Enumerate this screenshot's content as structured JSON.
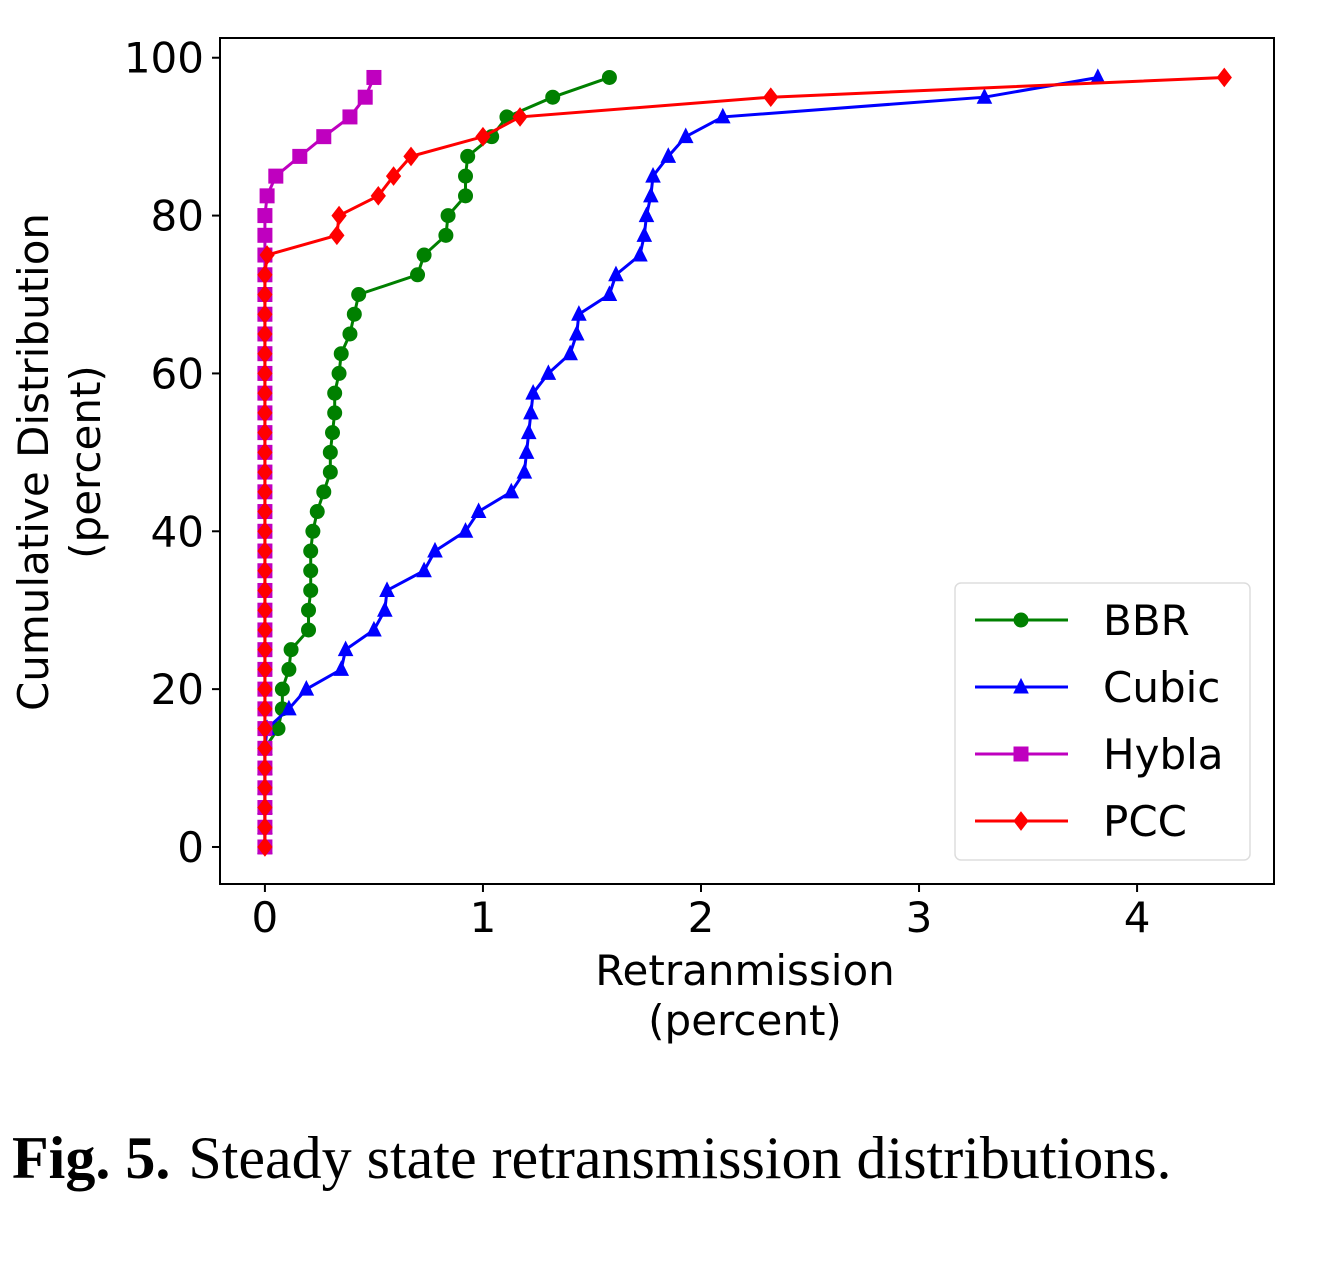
{
  "chart_data": {
    "type": "line",
    "xlabel": [
      "Retranmission",
      "(percent)"
    ],
    "ylabel": [
      "Cumulative Distribution",
      "(percent)"
    ],
    "xlim": [
      -0.206,
      4.628
    ],
    "ylim": [
      -4.69,
      102.5
    ],
    "xticks": [
      0,
      1,
      2,
      3,
      4
    ],
    "yticks": [
      0,
      20,
      40,
      60,
      80,
      100
    ],
    "grid": false,
    "legend": "lower right",
    "series": [
      {
        "name": "BBR",
        "color": "#008000",
        "marker": "circle",
        "x": [
          0,
          0,
          0,
          0,
          0,
          0,
          0.06,
          0.08,
          0.08,
          0.11,
          0.12,
          0.2,
          0.2,
          0.21,
          0.21,
          0.21,
          0.22,
          0.24,
          0.27,
          0.3,
          0.3,
          0.31,
          0.32,
          0.32,
          0.34,
          0.35,
          0.39,
          0.41,
          0.43,
          0.7,
          0.73,
          0.83,
          0.84,
          0.92,
          0.92,
          0.93,
          1.04,
          1.11,
          1.32,
          1.58
        ],
        "values": [
          0,
          2.5,
          5,
          7.5,
          10,
          12.5,
          15,
          17.5,
          20,
          22.5,
          25,
          27.5,
          30,
          32.5,
          35,
          37.5,
          40,
          42.5,
          45,
          47.5,
          50,
          52.5,
          55,
          57.5,
          60,
          62.5,
          65,
          67.5,
          70,
          72.5,
          75,
          77.5,
          80,
          82.5,
          85,
          87.5,
          90,
          92.5,
          95,
          97.5
        ]
      },
      {
        "name": "Cubic",
        "color": "#0000ff",
        "marker": "triangle",
        "x": [
          0,
          0,
          0,
          0,
          0,
          0,
          0.01,
          0.11,
          0.19,
          0.35,
          0.37,
          0.5,
          0.55,
          0.56,
          0.73,
          0.78,
          0.92,
          0.98,
          1.13,
          1.19,
          1.2,
          1.21,
          1.22,
          1.23,
          1.3,
          1.4,
          1.43,
          1.44,
          1.58,
          1.61,
          1.72,
          1.74,
          1.75,
          1.77,
          1.78,
          1.85,
          1.93,
          2.1,
          3.3,
          3.82
        ],
        "values": [
          0,
          2.5,
          5,
          7.5,
          10,
          12.5,
          15,
          17.5,
          20,
          22.5,
          25,
          27.5,
          30,
          32.5,
          35,
          37.5,
          40,
          42.5,
          45,
          47.5,
          50,
          52.5,
          55,
          57.5,
          60,
          62.5,
          65,
          67.5,
          70,
          72.5,
          75,
          77.5,
          80,
          82.5,
          85,
          87.5,
          90,
          92.5,
          95,
          97.5
        ]
      },
      {
        "name": "Hybla",
        "color": "#bf00bf",
        "marker": "square",
        "x": [
          0,
          0,
          0,
          0,
          0,
          0,
          0,
          0,
          0,
          0,
          0,
          0,
          0,
          0,
          0,
          0,
          0,
          0,
          0,
          0,
          0,
          0,
          0,
          0,
          0,
          0,
          0,
          0,
          0,
          0,
          0,
          0,
          0,
          0.01,
          0.05,
          0.16,
          0.27,
          0.39,
          0.46,
          0.5
        ],
        "values": [
          0,
          2.5,
          5,
          7.5,
          10,
          12.5,
          15,
          17.5,
          20,
          22.5,
          25,
          27.5,
          30,
          32.5,
          35,
          37.5,
          40,
          42.5,
          45,
          47.5,
          50,
          52.5,
          55,
          57.5,
          60,
          62.5,
          65,
          67.5,
          70,
          72.5,
          75,
          77.5,
          80,
          82.5,
          85,
          87.5,
          90,
          92.5,
          95,
          97.5
        ]
      },
      {
        "name": "PCC",
        "color": "#ff0000",
        "marker": "diamond",
        "x": [
          0,
          0,
          0,
          0,
          0,
          0,
          0,
          0,
          0,
          0,
          0,
          0,
          0,
          0,
          0,
          0,
          0,
          0,
          0,
          0,
          0,
          0,
          0,
          0,
          0,
          0,
          0,
          0,
          0,
          0,
          0.01,
          0.33,
          0.34,
          0.52,
          0.59,
          0.67,
          1.0,
          1.17,
          2.32,
          4.4
        ],
        "values": [
          0,
          2.5,
          5,
          7.5,
          10,
          12.5,
          15,
          17.5,
          20,
          22.5,
          25,
          27.5,
          30,
          32.5,
          35,
          37.5,
          40,
          42.5,
          45,
          47.5,
          50,
          52.5,
          55,
          57.5,
          60,
          62.5,
          65,
          67.5,
          70,
          72.5,
          75,
          77.5,
          80,
          82.5,
          85,
          87.5,
          90,
          92.5,
          95,
          97.5
        ]
      }
    ]
  },
  "caption": {
    "label": "Fig. 5.",
    "text": "Steady state retransmission distributions."
  }
}
